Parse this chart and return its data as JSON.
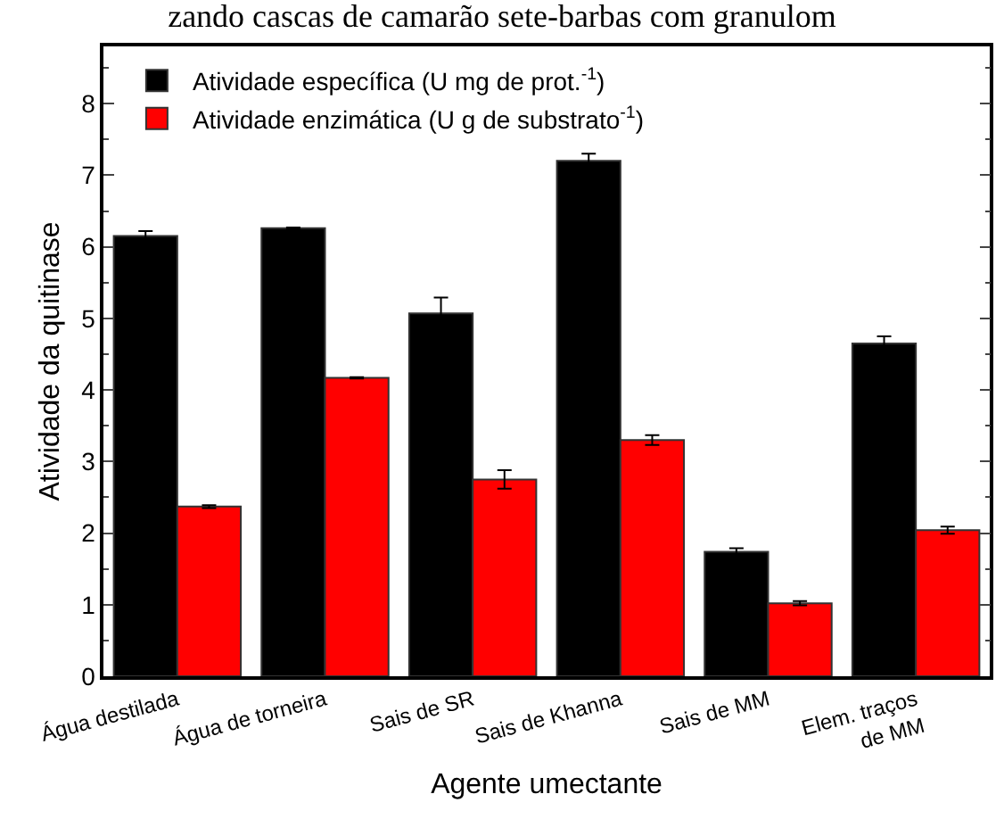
{
  "chart_data": {
    "type": "bar",
    "title": "zando cascas de camarão sete-barbas com granulom",
    "xlabel": "Agente umectante",
    "ylabel": "Atividade da quitinase",
    "categories": [
      "Água destilada",
      "Água de torneira",
      "Sais de SR",
      "Sais de Khanna",
      "Sais de MM",
      "Elem. traços\nde MM"
    ],
    "series": [
      {
        "name": "Atividade específica (U mg de prot.$^{-1}$)",
        "color": "#000000",
        "values": [
          6.15,
          6.26,
          5.07,
          7.2,
          1.74,
          4.65
        ],
        "errors": [
          0.07,
          0.01,
          0.22,
          0.1,
          0.05,
          0.1
        ]
      },
      {
        "name": "Atividade enzimática (U g de substrato$^{-1}$)",
        "color": "#ff0000",
        "values": [
          2.37,
          4.17,
          2.75,
          3.3,
          1.02,
          2.04
        ],
        "errors": [
          0.02,
          0.01,
          0.13,
          0.07,
          0.03,
          0.05
        ]
      }
    ],
    "ylim": [
      0,
      8.8
    ],
    "yticks": [
      0,
      1,
      2,
      3,
      4,
      5,
      6,
      7,
      8
    ],
    "grid": false,
    "legend": "top left"
  }
}
